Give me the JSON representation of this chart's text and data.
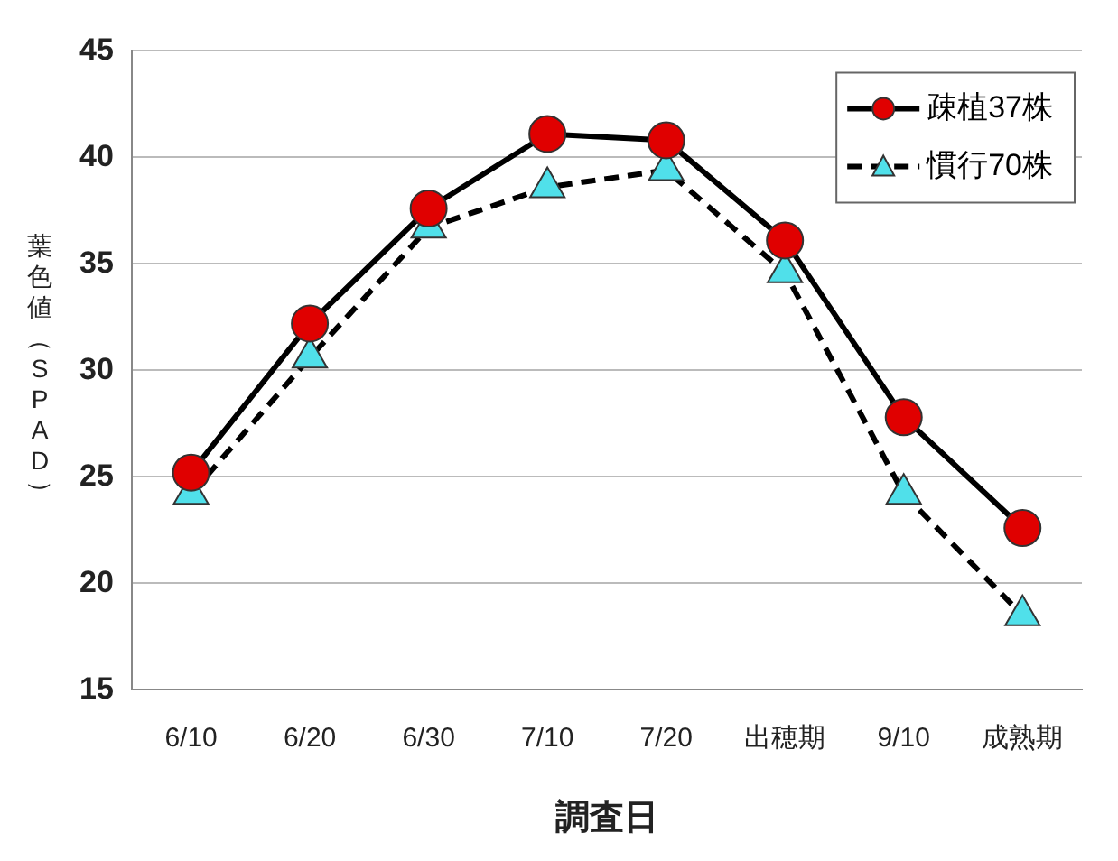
{
  "chart_data": {
    "type": "line",
    "xlabel": "調査日",
    "ylabel": "葉色値（SPAD）",
    "categories": [
      "6/10",
      "6/20",
      "6/30",
      "7/10",
      "7/20",
      "出穂期",
      "9/10",
      "成熟期"
    ],
    "series": [
      {
        "name": "疎植37株",
        "color": "#e00000",
        "marker": "circle",
        "line_style": "solid",
        "values": [
          25.2,
          32.2,
          37.6,
          41.1,
          40.8,
          36.1,
          27.8,
          22.6
        ]
      },
      {
        "name": "慣行70株",
        "color": "#50e0ea",
        "marker": "triangle",
        "line_style": "dashed",
        "values": [
          24.2,
          30.6,
          36.7,
          38.6,
          39.4,
          34.6,
          24.2,
          18.5
        ]
      }
    ],
    "ylim": [
      15,
      45
    ],
    "yticks": [
      15,
      20,
      25,
      30,
      35,
      40,
      45
    ],
    "grid": "y",
    "legend": "top right"
  }
}
